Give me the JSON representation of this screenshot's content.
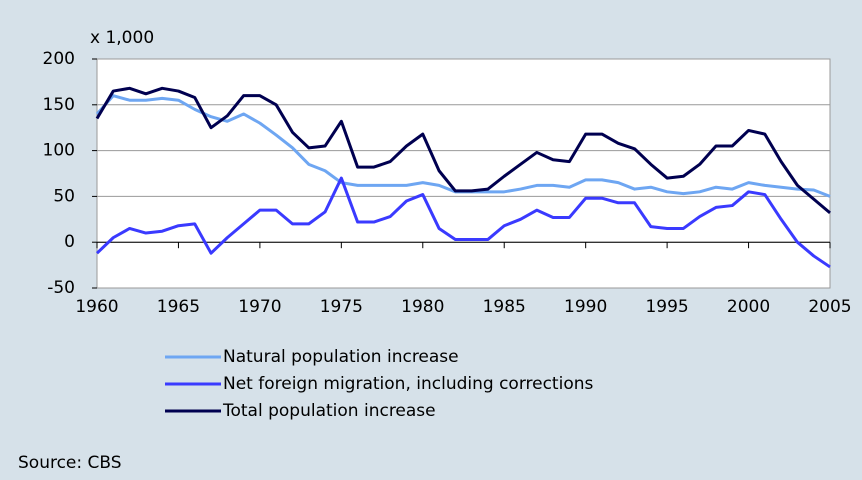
{
  "chart_data": {
    "type": "line",
    "unit_label": "x 1,000",
    "source": "Source: CBS",
    "x": [
      1960,
      1961,
      1962,
      1963,
      1964,
      1965,
      1966,
      1967,
      1968,
      1969,
      1970,
      1971,
      1972,
      1973,
      1974,
      1975,
      1976,
      1977,
      1978,
      1979,
      1980,
      1981,
      1982,
      1983,
      1984,
      1985,
      1986,
      1987,
      1988,
      1989,
      1990,
      1991,
      1992,
      1993,
      1994,
      1995,
      1996,
      1997,
      1998,
      1999,
      2000,
      2001,
      2002,
      2003,
      2004,
      2005
    ],
    "series": [
      {
        "name": "Natural population increase",
        "color": "#6ea6f2",
        "values": [
          140,
          160,
          155,
          155,
          157,
          155,
          145,
          137,
          132,
          140,
          130,
          117,
          103,
          85,
          78,
          65,
          62,
          62,
          62,
          62,
          65,
          62,
          55,
          55,
          55,
          55,
          58,
          62,
          62,
          60,
          68,
          68,
          65,
          58,
          60,
          55,
          53,
          55,
          60,
          58,
          65,
          62,
          60,
          58,
          57,
          50
        ]
      },
      {
        "name": "Net foreign migration, including corrections",
        "color": "#3a3aff",
        "values": [
          -12,
          5,
          15,
          10,
          12,
          18,
          20,
          -12,
          5,
          20,
          35,
          35,
          20,
          20,
          33,
          70,
          22,
          22,
          28,
          45,
          52,
          15,
          3,
          3,
          3,
          18,
          25,
          35,
          27,
          27,
          48,
          48,
          43,
          43,
          17,
          15,
          15,
          28,
          38,
          40,
          55,
          52,
          25,
          0,
          -15,
          -27
        ]
      },
      {
        "name": "Total population increase",
        "color": "#000050",
        "values": [
          135,
          165,
          168,
          162,
          168,
          165,
          158,
          125,
          138,
          160,
          160,
          150,
          120,
          103,
          105,
          132,
          82,
          82,
          88,
          105,
          118,
          78,
          56,
          56,
          58,
          72,
          85,
          98,
          90,
          88,
          118,
          118,
          108,
          102,
          85,
          70,
          72,
          85,
          105,
          105,
          122,
          118,
          88,
          62,
          47,
          32
        ]
      }
    ],
    "xlim": [
      1960,
      2005
    ],
    "xticks": [
      1960,
      1965,
      1970,
      1975,
      1980,
      1985,
      1990,
      1995,
      2000,
      2005
    ],
    "ylim": [
      -50,
      200
    ],
    "yticks": [
      -50,
      0,
      50,
      100,
      150,
      200
    ],
    "grid": true,
    "legend": "bottom"
  }
}
